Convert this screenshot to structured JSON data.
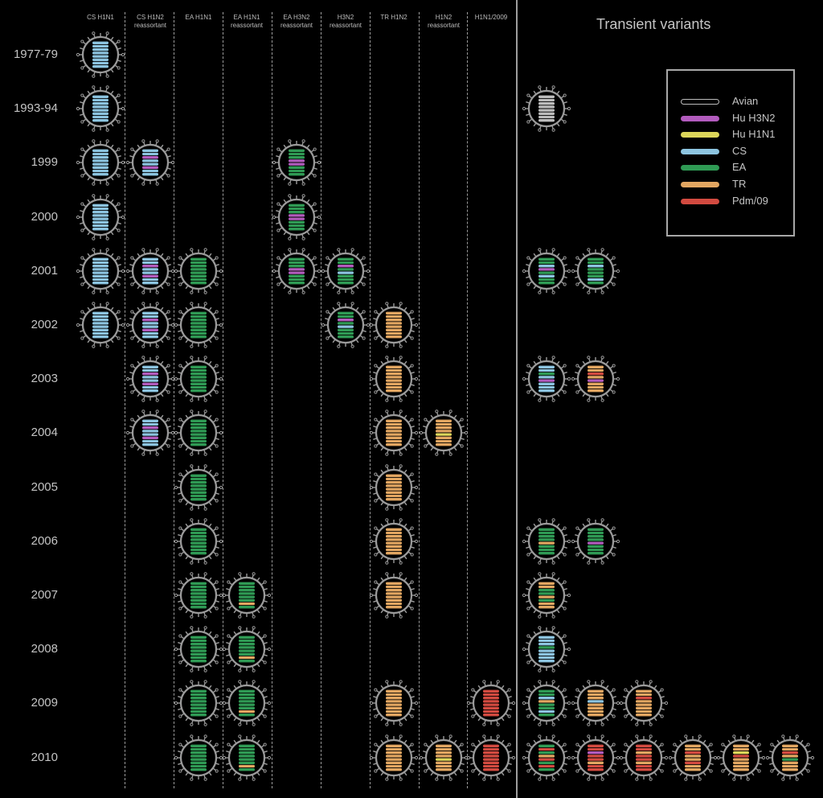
{
  "columns": [
    {
      "name": "CS H1N1",
      "sub": ""
    },
    {
      "name": "CS H1N2",
      "sub": "reassortant"
    },
    {
      "name": "EA H1N1",
      "sub": ""
    },
    {
      "name": "EA H1N1",
      "sub": "reassortant"
    },
    {
      "name": "EA H3N2",
      "sub": "reassortant"
    },
    {
      "name": "H3N2",
      "sub": "reassortant"
    },
    {
      "name": "TR H1N2",
      "sub": ""
    },
    {
      "name": "H1N2",
      "sub": "reassortant"
    },
    {
      "name": "H1N1/2009",
      "sub": ""
    }
  ],
  "years": [
    "1977-79",
    "1993-94",
    "1999",
    "2000",
    "2001",
    "2002",
    "2003",
    "2004",
    "2005",
    "2006",
    "2007",
    "2008",
    "2009",
    "2010"
  ],
  "transient_title": "Transient variants",
  "legend": [
    {
      "label": "Avian",
      "color": "#bcbcbc",
      "key": "avian"
    },
    {
      "label": "Hu H3N2",
      "color": "#b25bbd",
      "key": "hu_h3n2"
    },
    {
      "label": "Hu H1N1",
      "color": "#dcd65a",
      "key": "hu_h1n1"
    },
    {
      "label": "CS",
      "color": "#8cc4e0",
      "key": "cs"
    },
    {
      "label": "EA",
      "color": "#2f9a54",
      "key": "ea"
    },
    {
      "label": "TR",
      "color": "#e2a661",
      "key": "tr"
    },
    {
      "label": "Pdm/09",
      "color": "#d24a40",
      "key": "pdm"
    }
  ],
  "virus_types": {
    "cs": [
      "cs",
      "cs",
      "cs",
      "cs",
      "cs",
      "cs",
      "cs",
      "cs"
    ],
    "csh1n2": [
      "cs",
      "cs",
      "hu_h3n2",
      "cs",
      "cs",
      "hu_h3n2",
      "cs",
      "cs"
    ],
    "ea": [
      "ea",
      "ea",
      "ea",
      "ea",
      "ea",
      "ea",
      "ea",
      "ea"
    ],
    "eareas": [
      "ea",
      "ea",
      "ea",
      "ea",
      "ea",
      "ea",
      "tr",
      "ea"
    ],
    "eah3n2": [
      "ea",
      "ea",
      "ea",
      "hu_h3n2",
      "hu_h3n2",
      "ea",
      "ea",
      "ea"
    ],
    "h3n2": [
      "ea",
      "ea",
      "hu_h3n2",
      "ea",
      "cs",
      "ea",
      "ea",
      "ea"
    ],
    "tr": [
      "tr",
      "tr",
      "tr",
      "tr",
      "tr",
      "tr",
      "tr",
      "tr"
    ],
    "h1n2": [
      "tr",
      "tr",
      "tr",
      "tr",
      "hu_h1n1",
      "tr",
      "tr",
      "tr"
    ],
    "pdm": [
      "pdm",
      "pdm",
      "pdm",
      "pdm",
      "pdm",
      "pdm",
      "pdm",
      "pdm"
    ],
    "avian": [
      "avian",
      "avian",
      "avian",
      "avian",
      "avian",
      "avian",
      "avian",
      "avian"
    ],
    "t2001a": [
      "ea",
      "ea",
      "cs",
      "hu_h3n2",
      "ea",
      "cs",
      "ea",
      "ea"
    ],
    "t2001b": [
      "ea",
      "ea",
      "cs",
      "ea",
      "ea",
      "ea",
      "cs",
      "ea"
    ],
    "t2003a": [
      "cs",
      "cs",
      "ea",
      "cs",
      "hu_h3n2",
      "cs",
      "cs",
      "cs"
    ],
    "t2003b": [
      "tr",
      "tr",
      "pdm",
      "tr",
      "hu_h3n2",
      "tr",
      "tr",
      "tr"
    ],
    "t2006a": [
      "ea",
      "ea",
      "ea",
      "ea",
      "tr",
      "ea",
      "ea",
      "ea"
    ],
    "t2006b": [
      "ea",
      "ea",
      "ea",
      "ea",
      "hu_h3n2",
      "ea",
      "ea",
      "ea"
    ],
    "t2007": [
      "tr",
      "tr",
      "ea",
      "ea",
      "tr",
      "ea",
      "tr",
      "tr"
    ],
    "t2008": [
      "cs",
      "cs",
      "cs",
      "ea",
      "cs",
      "cs",
      "cs",
      "cs"
    ],
    "t2009a": [
      "ea",
      "ea",
      "cs",
      "tr",
      "ea",
      "ea",
      "cs",
      "ea"
    ],
    "t2009b": [
      "tr",
      "tr",
      "tr",
      "cs",
      "tr",
      "tr",
      "tr",
      "tr"
    ],
    "t2009c": [
      "tr",
      "tr",
      "pdm",
      "tr",
      "tr",
      "tr",
      "tr",
      "tr"
    ],
    "t2010a": [
      "ea",
      "pdm",
      "ea",
      "tr",
      "pdm",
      "ea",
      "pdm",
      "ea"
    ],
    "t2010b": [
      "pdm",
      "pdm",
      "hu_h3n2",
      "pdm",
      "pdm",
      "tr",
      "pdm",
      "pdm"
    ],
    "t2010c": [
      "pdm",
      "pdm",
      "tr",
      "pdm",
      "pdm",
      "tr",
      "pdm",
      "pdm"
    ],
    "t2010d": [
      "tr",
      "tr",
      "pdm",
      "tr",
      "tr",
      "pdm",
      "tr",
      "tr"
    ],
    "t2010e": [
      "tr",
      "tr",
      "hu_h1n1",
      "pdm",
      "tr",
      "tr",
      "tr",
      "tr"
    ],
    "t2010f": [
      "tr",
      "tr",
      "pdm",
      "tr",
      "ea",
      "tr",
      "tr",
      "tr"
    ]
  },
  "matrix": [
    {
      "year": "1977-79",
      "cols": [
        "cs",
        "",
        "",
        "",
        "",
        "",
        "",
        "",
        ""
      ],
      "transient": []
    },
    {
      "year": "1993-94",
      "cols": [
        "cs",
        "",
        "",
        "",
        "",
        "",
        "",
        "",
        ""
      ],
      "transient": [
        "avian"
      ]
    },
    {
      "year": "1999",
      "cols": [
        "cs",
        "csh1n2",
        "",
        "",
        "eah3n2",
        "",
        "",
        "",
        ""
      ],
      "transient": []
    },
    {
      "year": "2000",
      "cols": [
        "cs",
        "",
        "",
        "",
        "eah3n2",
        "",
        "",
        "",
        ""
      ],
      "transient": []
    },
    {
      "year": "2001",
      "cols": [
        "cs",
        "csh1n2",
        "ea",
        "",
        "eah3n2",
        "h3n2",
        "",
        "",
        ""
      ],
      "transient": [
        "t2001a",
        "t2001b"
      ]
    },
    {
      "year": "2002",
      "cols": [
        "cs",
        "csh1n2",
        "ea",
        "",
        "",
        "h3n2",
        "tr",
        "",
        ""
      ],
      "transient": []
    },
    {
      "year": "2003",
      "cols": [
        "",
        "csh1n2",
        "ea",
        "",
        "",
        "",
        "tr",
        "",
        ""
      ],
      "transient": [
        "t2003a",
        "t2003b"
      ]
    },
    {
      "year": "2004",
      "cols": [
        "",
        "csh1n2",
        "ea",
        "",
        "",
        "",
        "tr",
        "h1n2",
        ""
      ],
      "transient": []
    },
    {
      "year": "2005",
      "cols": [
        "",
        "",
        "ea",
        "",
        "",
        "",
        "tr",
        "",
        ""
      ],
      "transient": []
    },
    {
      "year": "2006",
      "cols": [
        "",
        "",
        "ea",
        "",
        "",
        "",
        "tr",
        "",
        ""
      ],
      "transient": [
        "t2006a",
        "t2006b"
      ]
    },
    {
      "year": "2007",
      "cols": [
        "",
        "",
        "ea",
        "eareas",
        "",
        "",
        "tr",
        "",
        ""
      ],
      "transient": [
        "t2007"
      ]
    },
    {
      "year": "2008",
      "cols": [
        "",
        "",
        "ea",
        "eareas",
        "",
        "",
        "",
        "",
        ""
      ],
      "transient": [
        "t2008"
      ]
    },
    {
      "year": "2009",
      "cols": [
        "",
        "",
        "ea",
        "eareas",
        "",
        "",
        "tr",
        "",
        "pdm"
      ],
      "transient": [
        "t2009a",
        "t2009b",
        "t2009c"
      ]
    },
    {
      "year": "2010",
      "cols": [
        "",
        "",
        "ea",
        "eareas",
        "",
        "",
        "tr",
        "h1n2",
        "pdm"
      ],
      "transient": [
        "t2010a",
        "t2010b",
        "t2010c",
        "t2010d",
        "t2010e",
        "t2010f"
      ]
    }
  ]
}
